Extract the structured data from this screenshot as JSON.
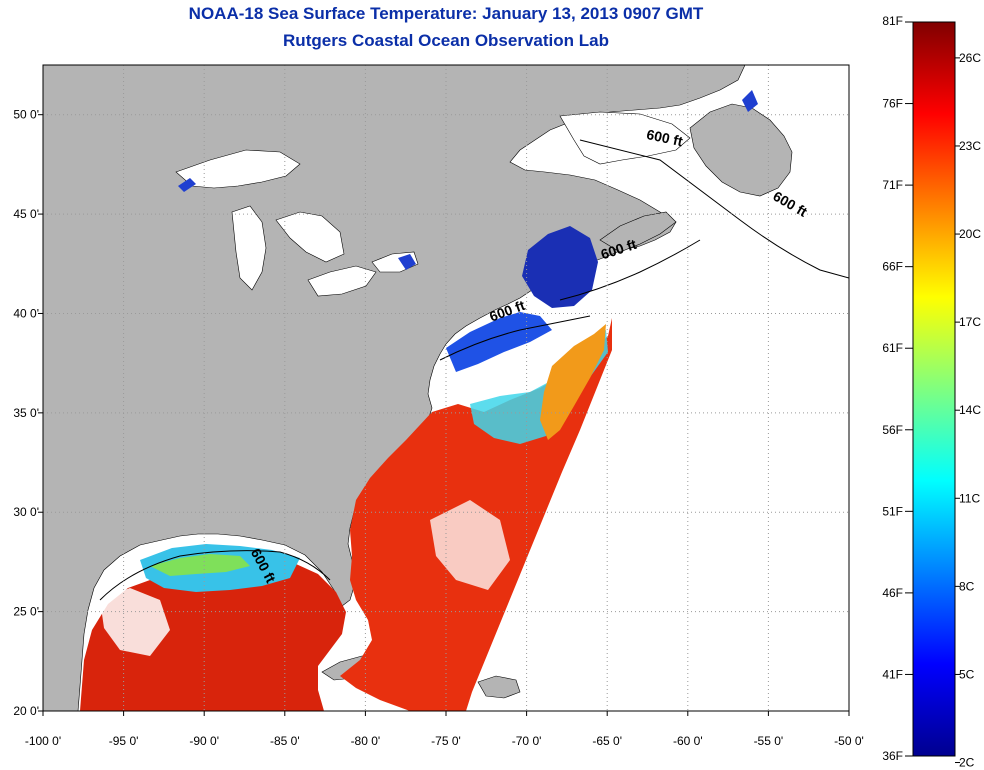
{
  "title": "NOAA-18 Sea Surface Temperature:  January 13, 2013 0907 GMT",
  "subtitle": "Rutgers Coastal Ocean Observation Lab",
  "map": {
    "lon_range": [
      -100,
      -50
    ],
    "lat_range": [
      20,
      52.5
    ],
    "lon_ticks": [
      {
        "value": -100,
        "label": "-100 0'"
      },
      {
        "value": -95,
        "label": "-95 0'"
      },
      {
        "value": -90,
        "label": "-90 0'"
      },
      {
        "value": -85,
        "label": "-85 0'"
      },
      {
        "value": -80,
        "label": "-80 0'"
      },
      {
        "value": -75,
        "label": "-75 0'"
      },
      {
        "value": -70,
        "label": "-70 0'"
      },
      {
        "value": -65,
        "label": "-65 0'"
      },
      {
        "value": -60,
        "label": "-60 0'"
      },
      {
        "value": -55,
        "label": "-55 0'"
      },
      {
        "value": -50,
        "label": "-50 0'"
      }
    ],
    "lat_ticks": [
      {
        "value": 20,
        "label": "20 0'"
      },
      {
        "value": 25,
        "label": "25 0'"
      },
      {
        "value": 30,
        "label": "30 0'"
      },
      {
        "value": 35,
        "label": "35 0'"
      },
      {
        "value": 40,
        "label": "40 0'"
      },
      {
        "value": 45,
        "label": "45 0'"
      },
      {
        "value": 50,
        "label": "50 0'"
      }
    ],
    "contour_labels": [
      {
        "text": "600 ft",
        "lon": -61.5,
        "lat": 48.6,
        "angle": 12
      },
      {
        "text": "600 ft",
        "lon": -53.8,
        "lat": 45.3,
        "angle": 30
      },
      {
        "text": "600 ft",
        "lon": -64.2,
        "lat": 43.0,
        "angle": -18
      },
      {
        "text": "600 ft",
        "lon": -71.1,
        "lat": 39.9,
        "angle": -20
      },
      {
        "text": "600 ft",
        "lon": -86.6,
        "lat": 27.2,
        "angle": 62
      }
    ],
    "colors": {
      "land": "#b4b4b4",
      "no_data": "#ffffff",
      "lakes": "#ffffff",
      "grid": "#9a9a9a"
    }
  },
  "colorbar": {
    "min_f": 36,
    "max_f": 81,
    "f_ticks": [
      {
        "value": 36,
        "label": "36F"
      },
      {
        "value": 41,
        "label": "41F"
      },
      {
        "value": 46,
        "label": "46F"
      },
      {
        "value": 51,
        "label": "51F"
      },
      {
        "value": 56,
        "label": "56F"
      },
      {
        "value": 61,
        "label": "61F"
      },
      {
        "value": 66,
        "label": "66F"
      },
      {
        "value": 71,
        "label": "71F"
      },
      {
        "value": 76,
        "label": "76F"
      },
      {
        "value": 81,
        "label": "81F"
      }
    ],
    "c_ticks": [
      {
        "value": 2,
        "label": "2C"
      },
      {
        "value": 5,
        "label": "5C"
      },
      {
        "value": 8,
        "label": "8C"
      },
      {
        "value": 11,
        "label": "11C"
      },
      {
        "value": 14,
        "label": "14C"
      },
      {
        "value": 17,
        "label": "17C"
      },
      {
        "value": 20,
        "label": "20C"
      },
      {
        "value": 23,
        "label": "23C"
      },
      {
        "value": 26,
        "label": "26C"
      }
    ]
  }
}
